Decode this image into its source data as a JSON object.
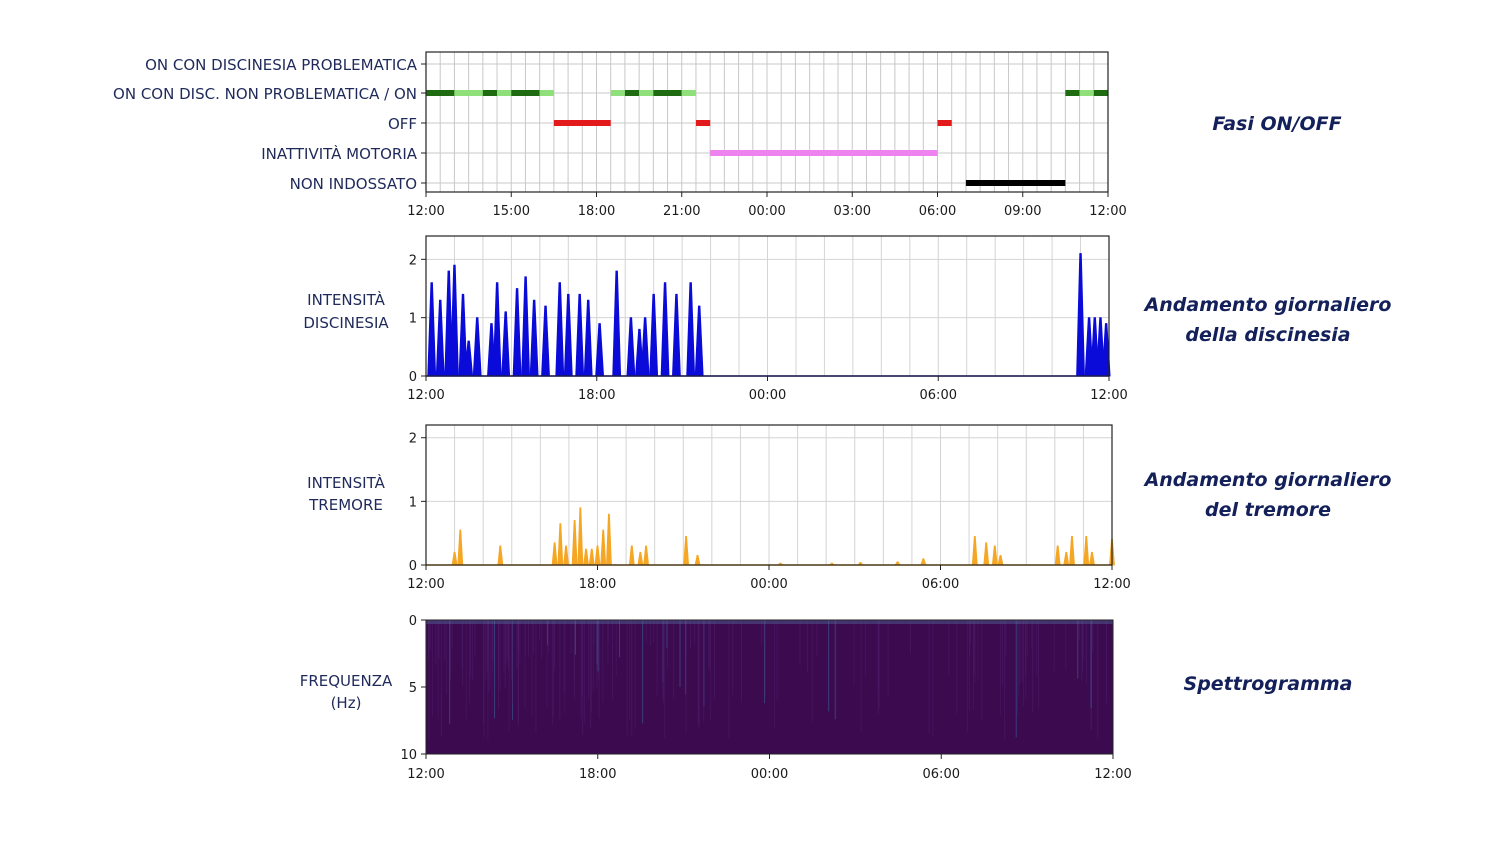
{
  "colors": {
    "dark_green": "#1f6b12",
    "light_green": "#8fe07a",
    "red": "#e31a1c",
    "violet": "#ee82ee",
    "black": "#000000",
    "dyskinesia": "#0a0ad9",
    "tremor": "#f5a623",
    "spectrogram_bg": "#3b0a4f",
    "text": "#1f2a5a",
    "side_text": "#14205a"
  },
  "side_labels": {
    "phases": "Fasi ON/OFF",
    "dyskinesia_l1": "Andamento giornaliero",
    "dyskinesia_l2": "della discinesia",
    "tremor_l1": "Andamento giornaliero",
    "tremor_l2": "del tremore",
    "spectrogram": "Spettrogramma"
  },
  "y_labels": {
    "dyskinesia_l1": "INTENSITÀ",
    "dyskinesia_l2": "DISCINESIA",
    "tremor_l1": "INTENSITÀ",
    "tremor_l2": "TREMORE",
    "spectrogram_l1": "FREQUENZA",
    "spectrogram_l2": "(Hz)"
  },
  "chart_data": [
    {
      "type": "bar",
      "name": "phases",
      "x_domain_hours": [
        0,
        24
      ],
      "x_ticks": [
        "12:00",
        "15:00",
        "18:00",
        "21:00",
        "00:00",
        "03:00",
        "06:00",
        "09:00",
        "12:00"
      ],
      "categories": [
        "ON CON DISCINESIA PROBLEMATICA",
        "ON CON DISC. NON PROBLEMATICA / ON",
        "OFF",
        "INATTIVITÀ MOTORIA",
        "NON INDOSSATO"
      ],
      "segments": [
        {
          "category": 1,
          "from": "12:00",
          "to": "13:00",
          "color": "dark_green"
        },
        {
          "category": 1,
          "from": "13:00",
          "to": "14:00",
          "color": "light_green"
        },
        {
          "category": 1,
          "from": "14:00",
          "to": "14:30",
          "color": "dark_green"
        },
        {
          "category": 1,
          "from": "14:30",
          "to": "15:00",
          "color": "light_green"
        },
        {
          "category": 1,
          "from": "15:00",
          "to": "16:00",
          "color": "dark_green"
        },
        {
          "category": 1,
          "from": "16:00",
          "to": "16:30",
          "color": "light_green"
        },
        {
          "category": 2,
          "from": "16:30",
          "to": "18:30",
          "color": "red"
        },
        {
          "category": 1,
          "from": "18:30",
          "to": "19:00",
          "color": "light_green"
        },
        {
          "category": 1,
          "from": "19:00",
          "to": "19:30",
          "color": "dark_green"
        },
        {
          "category": 1,
          "from": "19:30",
          "to": "20:00",
          "color": "light_green"
        },
        {
          "category": 1,
          "from": "20:00",
          "to": "21:00",
          "color": "dark_green"
        },
        {
          "category": 1,
          "from": "21:00",
          "to": "21:30",
          "color": "light_green"
        },
        {
          "category": 2,
          "from": "21:30",
          "to": "22:00",
          "color": "red"
        },
        {
          "category": 3,
          "from": "22:00",
          "to": "06:00",
          "color": "violet"
        },
        {
          "category": 2,
          "from": "06:00",
          "to": "06:30",
          "color": "red"
        },
        {
          "category": 4,
          "from": "07:00",
          "to": "10:30",
          "color": "black"
        },
        {
          "category": 1,
          "from": "10:30",
          "to": "11:00",
          "color": "dark_green"
        },
        {
          "category": 1,
          "from": "11:00",
          "to": "11:30",
          "color": "light_green"
        },
        {
          "category": 1,
          "from": "11:30",
          "to": "12:00",
          "color": "dark_green"
        }
      ]
    },
    {
      "type": "area",
      "name": "dyskinesia",
      "x_ticks": [
        "12:00",
        "18:00",
        "00:00",
        "06:00",
        "12:00"
      ],
      "y_ticks": [
        "0",
        "1",
        "2"
      ],
      "ylim": [
        0,
        2.4
      ],
      "peaks_hours_value": [
        [
          0.2,
          1.6
        ],
        [
          0.5,
          1.3
        ],
        [
          0.8,
          1.8
        ],
        [
          1.0,
          1.9
        ],
        [
          1.3,
          1.4
        ],
        [
          1.5,
          0.6
        ],
        [
          1.8,
          1.0
        ],
        [
          2.3,
          0.9
        ],
        [
          2.5,
          1.6
        ],
        [
          2.8,
          1.1
        ],
        [
          3.2,
          1.5
        ],
        [
          3.5,
          1.7
        ],
        [
          3.8,
          1.3
        ],
        [
          4.2,
          1.2
        ],
        [
          4.7,
          1.6
        ],
        [
          5.0,
          1.4
        ],
        [
          5.4,
          1.4
        ],
        [
          5.7,
          1.3
        ],
        [
          6.1,
          0.9
        ],
        [
          6.7,
          1.8
        ],
        [
          7.2,
          1.0
        ],
        [
          7.5,
          0.8
        ],
        [
          7.7,
          1.0
        ],
        [
          8.0,
          1.4
        ],
        [
          8.4,
          1.6
        ],
        [
          8.8,
          1.4
        ],
        [
          9.3,
          1.6
        ],
        [
          9.6,
          1.2
        ],
        [
          23.0,
          2.1
        ],
        [
          23.3,
          1.0
        ],
        [
          23.5,
          1.0
        ],
        [
          23.7,
          1.0
        ],
        [
          23.9,
          0.9
        ]
      ]
    },
    {
      "type": "area",
      "name": "tremor",
      "x_ticks": [
        "12:00",
        "18:00",
        "00:00",
        "06:00",
        "12:00"
      ],
      "y_ticks": [
        "0",
        "1",
        "2"
      ],
      "ylim": [
        0,
        2.2
      ],
      "peaks_hours_value": [
        [
          1.0,
          0.2
        ],
        [
          1.2,
          0.55
        ],
        [
          2.6,
          0.3
        ],
        [
          4.5,
          0.35
        ],
        [
          4.7,
          0.65
        ],
        [
          4.9,
          0.3
        ],
        [
          5.2,
          0.7
        ],
        [
          5.4,
          0.9
        ],
        [
          5.6,
          0.25
        ],
        [
          5.8,
          0.25
        ],
        [
          6.0,
          0.3
        ],
        [
          6.2,
          0.55
        ],
        [
          6.4,
          0.8
        ],
        [
          7.2,
          0.3
        ],
        [
          7.5,
          0.2
        ],
        [
          7.7,
          0.3
        ],
        [
          9.1,
          0.45
        ],
        [
          9.5,
          0.15
        ],
        [
          12.4,
          0.03
        ],
        [
          14.2,
          0.03
        ],
        [
          15.2,
          0.04
        ],
        [
          16.5,
          0.05
        ],
        [
          17.4,
          0.1
        ],
        [
          19.2,
          0.45
        ],
        [
          19.6,
          0.35
        ],
        [
          19.9,
          0.3
        ],
        [
          20.1,
          0.15
        ],
        [
          22.1,
          0.3
        ],
        [
          22.4,
          0.2
        ],
        [
          22.6,
          0.45
        ],
        [
          23.1,
          0.45
        ],
        [
          23.3,
          0.2
        ],
        [
          24.0,
          0.4
        ]
      ]
    },
    {
      "type": "heatmap",
      "name": "spectrogram",
      "x_ticks": [
        "12:00",
        "18:00",
        "00:00",
        "06:00",
        "12:00"
      ],
      "y_ticks": [
        "0",
        "5",
        "10"
      ],
      "ylim": [
        10,
        0
      ]
    }
  ]
}
